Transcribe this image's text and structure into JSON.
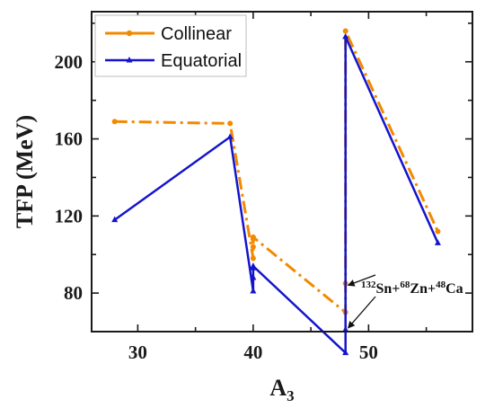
{
  "chart_data": {
    "type": "line",
    "xlabel": "A",
    "xlabel_sub": "3",
    "ylabel": "TFP (MeV)",
    "xlim": [
      26,
      59
    ],
    "ylim": [
      60,
      226
    ],
    "xticks": [
      30,
      40,
      50
    ],
    "yticks": [
      80,
      120,
      160,
      200
    ],
    "x_minor_step": 5,
    "y_minor_step": 20,
    "legend_position": "top-left",
    "series": [
      {
        "name": "Collinear",
        "color": "#f28a00",
        "style": "dash-dot",
        "marker": "circle",
        "x": [
          28,
          38,
          40,
          40,
          40,
          40,
          48,
          48,
          48,
          56
        ],
        "y": [
          169,
          168,
          98,
          104,
          108,
          109,
          70,
          85,
          216,
          112
        ]
      },
      {
        "name": "Equatorial",
        "color": "#1414cc",
        "style": "solid",
        "marker": "triangle",
        "x": [
          28,
          38,
          40,
          40,
          40,
          40,
          48,
          48,
          48,
          56
        ],
        "y": [
          118,
          161,
          81,
          88,
          93,
          94,
          49,
          61,
          213,
          106
        ]
      }
    ],
    "annotation": {
      "parts": [
        {
          "sup": "132",
          "text": "Sn+"
        },
        {
          "sup": "68",
          "text": "Zn+"
        },
        {
          "sup": "48",
          "text": "Ca"
        }
      ],
      "targets": [
        {
          "x": 48,
          "y": 85
        },
        {
          "x": 48,
          "y": 61
        }
      ]
    }
  }
}
